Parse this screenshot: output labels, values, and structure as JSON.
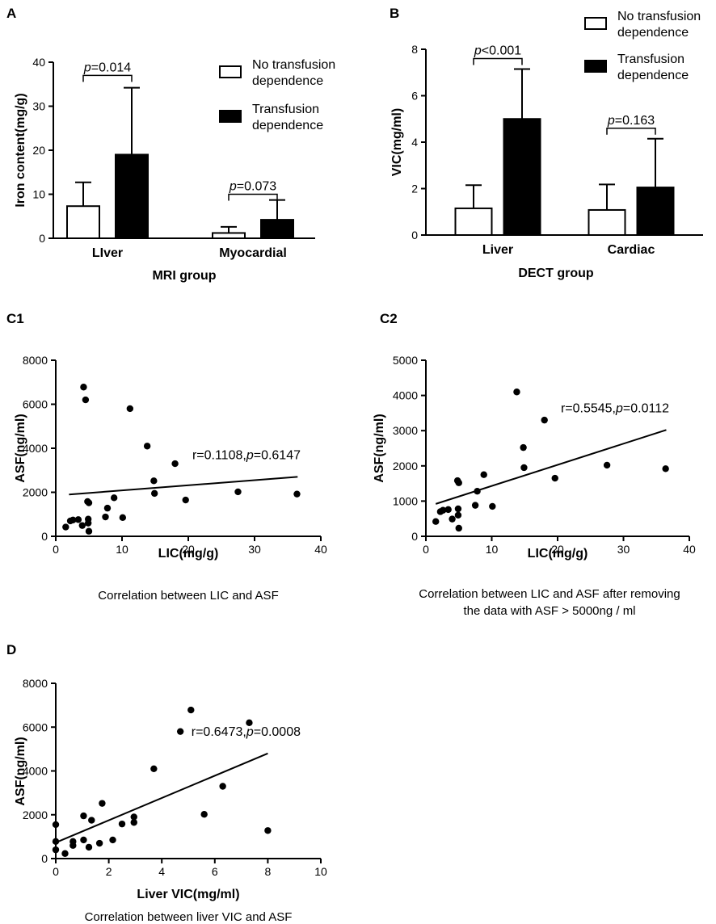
{
  "figure": {
    "charts": [
      {
        "id": "A",
        "panel_label": "A",
        "type": "bar",
        "xlabel": "MRI group",
        "ylabel": "Iron content(mg/g)",
        "ylim": [
          0,
          40
        ],
        "yticks": [
          0,
          10,
          20,
          30,
          40
        ],
        "categories": [
          "LIver",
          "Myocardial"
        ],
        "series": [
          {
            "name": "No transfusion dependence",
            "legend_lines": [
              "No transfusion",
              "dependence"
            ],
            "fill": "#ffffff",
            "values": [
              7.3,
              1.2
            ],
            "errors": [
              5.4,
              1.4
            ]
          },
          {
            "name": "Transfusion dependence",
            "legend_lines": [
              "Transfusion",
              "dependence"
            ],
            "fill": "#000000",
            "values": [
              19.0,
              4.2
            ],
            "errors": [
              15.2,
              4.5
            ]
          }
        ],
        "annotations": [
          {
            "category": 0,
            "prefix": "p",
            "text": "=0.014",
            "bracket_y": 37.0
          },
          {
            "category": 1,
            "prefix": "p",
            "text": "=0.073",
            "bracket_y": 10.0
          }
        ]
      },
      {
        "id": "B",
        "panel_label": "B",
        "type": "bar",
        "xlabel": "DECT group",
        "ylabel": "VIC(mg/ml)",
        "ylim": [
          0,
          8
        ],
        "yticks": [
          0,
          2,
          4,
          6,
          8
        ],
        "categories": [
          "Liver",
          "Cardiac"
        ],
        "series": [
          {
            "name": "No transfusion dependence",
            "legend_lines": [
              "No transfusion",
              "dependence"
            ],
            "fill": "#ffffff",
            "values": [
              1.15,
              1.08
            ],
            "errors": [
              1.0,
              1.1
            ]
          },
          {
            "name": "Transfusion dependence",
            "legend_lines": [
              "Transfusion",
              "dependence"
            ],
            "fill": "#000000",
            "values": [
              5.0,
              2.05
            ],
            "errors": [
              2.15,
              2.1
            ]
          }
        ],
        "annotations": [
          {
            "category": 0,
            "prefix": "p",
            "text": "<0.001",
            "bracket_y": 7.6
          },
          {
            "category": 1,
            "prefix": "p",
            "text": "=0.163",
            "bracket_y": 4.6
          }
        ]
      },
      {
        "id": "C1",
        "panel_label": "C1",
        "type": "scatter",
        "xlabel": "LIC(mg/g)",
        "ylabel": "ASF(ng/ml)",
        "xlim": [
          0,
          40
        ],
        "ylim": [
          0,
          8000
        ],
        "xticks": [
          0,
          10,
          20,
          30,
          40
        ],
        "yticks": [
          0,
          2000,
          4000,
          6000,
          8000
        ],
        "caption_lines": [
          "Correlation between LIC and ASF"
        ],
        "stat": {
          "r_text": "r=0.1108,",
          "p_prefix": "p",
          "p_text": "=0.6147"
        },
        "fit_line": {
          "x": [
            2,
            36.5
          ],
          "y": [
            1900,
            2700
          ]
        },
        "points": [
          [
            4.2,
            6780
          ],
          [
            4.5,
            6200
          ],
          [
            11.2,
            5800
          ],
          [
            13.8,
            4100
          ],
          [
            18.0,
            3300
          ],
          [
            14.8,
            2520
          ],
          [
            14.9,
            1950
          ],
          [
            19.6,
            1650
          ],
          [
            27.5,
            2020
          ],
          [
            36.4,
            1920
          ],
          [
            8.8,
            1750
          ],
          [
            10.1,
            850
          ],
          [
            7.8,
            1280
          ],
          [
            7.5,
            880
          ],
          [
            4.8,
            1580
          ],
          [
            5.0,
            1520
          ],
          [
            4.9,
            780
          ],
          [
            4.9,
            600
          ],
          [
            5.0,
            230
          ],
          [
            4.0,
            490
          ],
          [
            3.4,
            760
          ],
          [
            2.6,
            740
          ],
          [
            2.2,
            700
          ],
          [
            1.5,
            420
          ]
        ]
      },
      {
        "id": "C2",
        "panel_label": "C2",
        "type": "scatter",
        "xlabel": "LIC(mg/g)",
        "ylabel": "ASF(ng/ml)",
        "xlim": [
          0,
          40
        ],
        "ylim": [
          0,
          5000
        ],
        "xticks": [
          0,
          10,
          20,
          30,
          40
        ],
        "yticks": [
          0,
          1000,
          2000,
          3000,
          4000,
          5000
        ],
        "caption_lines": [
          "Correlation between LIC and ASF after removing",
          "the data with ASF > 5000ng / ml"
        ],
        "stat": {
          "r_text": "r=0.5545,",
          "p_prefix": "p",
          "p_text": "=0.0112"
        },
        "fit_line": {
          "x": [
            1.5,
            36.5
          ],
          "y": [
            920,
            3020
          ]
        },
        "points": [
          [
            13.8,
            4100
          ],
          [
            18.0,
            3300
          ],
          [
            14.8,
            2520
          ],
          [
            14.9,
            1950
          ],
          [
            19.6,
            1650
          ],
          [
            27.5,
            2020
          ],
          [
            36.4,
            1920
          ],
          [
            8.8,
            1750
          ],
          [
            10.1,
            850
          ],
          [
            7.8,
            1280
          ],
          [
            7.5,
            880
          ],
          [
            4.8,
            1580
          ],
          [
            5.0,
            1520
          ],
          [
            4.9,
            780
          ],
          [
            4.9,
            600
          ],
          [
            5.0,
            230
          ],
          [
            4.0,
            490
          ],
          [
            3.4,
            760
          ],
          [
            2.6,
            740
          ],
          [
            2.2,
            700
          ],
          [
            1.5,
            420
          ]
        ]
      },
      {
        "id": "D",
        "panel_label": "D",
        "type": "scatter",
        "xlabel": "Liver VIC(mg/ml)",
        "ylabel": "ASF(ng/ml)",
        "xlim": [
          0,
          10
        ],
        "ylim": [
          0,
          8000
        ],
        "xticks": [
          0,
          2,
          4,
          6,
          8,
          10
        ],
        "yticks": [
          0,
          2000,
          4000,
          6000,
          8000
        ],
        "caption_lines": [
          "Correlation between liver VIC and ASF"
        ],
        "stat": {
          "r_text": "r=0.6473,",
          "p_prefix": "p",
          "p_text": "=0.0008"
        },
        "fit_line": {
          "x": [
            0,
            8.0
          ],
          "y": [
            730,
            4800
          ]
        },
        "points": [
          [
            5.1,
            6780
          ],
          [
            7.3,
            6200
          ],
          [
            4.7,
            5800
          ],
          [
            3.7,
            4100
          ],
          [
            6.3,
            3300
          ],
          [
            5.6,
            2020
          ],
          [
            8.0,
            1280
          ],
          [
            1.75,
            2520
          ],
          [
            1.05,
            1950
          ],
          [
            2.95,
            1900
          ],
          [
            2.95,
            1650
          ],
          [
            1.35,
            1750
          ],
          [
            2.5,
            1580
          ],
          [
            1.05,
            850
          ],
          [
            2.15,
            850
          ],
          [
            0.65,
            780
          ],
          [
            0.65,
            600
          ],
          [
            1.65,
            700
          ],
          [
            1.25,
            520
          ],
          [
            0.0,
            1550
          ],
          [
            0.0,
            780
          ],
          [
            0.0,
            400
          ],
          [
            0.35,
            230
          ]
        ]
      }
    ]
  }
}
